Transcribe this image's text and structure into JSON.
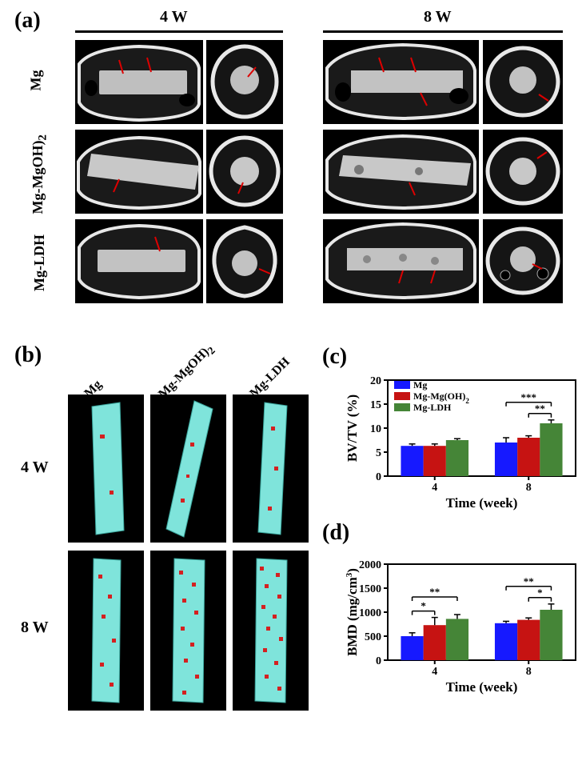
{
  "labels": {
    "a": "(a)",
    "b": "(b)",
    "c": "(c)",
    "d": "(d)",
    "col_4w": "4 W",
    "col_8w": "8 W",
    "row_mg": "Mg",
    "row_mgoh": "Mg-MgOH)",
    "row_mgoh_sub": "2",
    "row_ldh": "Mg-LDH",
    "b_mg": "Mg",
    "b_mgoh": "Mg-MgOH)",
    "b_mgoh_sub": "2",
    "b_ldh": "Mg-LDH",
    "b_4w": "4 W",
    "b_8w": "8 W"
  },
  "colors": {
    "mg": "#1619ff",
    "mgoh": "#c61312",
    "ldh": "#458537",
    "axis": "#000000",
    "bg": "#ffffff",
    "render_body": "#7fe4db",
    "render_spot": "#d42020"
  },
  "chart_c": {
    "type": "bar",
    "ylabel": "BV/TV (%)",
    "xlabel": "Time (week)",
    "ylim": [
      0,
      20
    ],
    "ytick_step": 5,
    "categories": [
      "4",
      "8"
    ],
    "series": [
      "Mg",
      "Mg-Mg(OH)",
      "Mg-LDH"
    ],
    "series_sub": [
      "",
      "2",
      ""
    ],
    "values": [
      [
        6.3,
        6.3,
        7.5
      ],
      [
        7.0,
        8.0,
        11.0
      ]
    ],
    "errors": [
      [
        0.4,
        0.4,
        0.3
      ],
      [
        1.0,
        0.4,
        0.7
      ]
    ],
    "sig": [
      {
        "group": 1,
        "from": 0,
        "to": 2,
        "text": "***",
        "level": 1
      },
      {
        "group": 1,
        "from": 1,
        "to": 2,
        "text": "**",
        "level": 0
      }
    ],
    "label_fontsize": 17,
    "tick_fontsize": 14,
    "bar_width": 0.24
  },
  "chart_d": {
    "type": "bar",
    "ylabel": "BMD (mg/cm³)",
    "ylabel_plain": "BMD (mg/cm",
    "ylabel_sup": "3",
    "ylabel_close": ")",
    "xlabel": "Time (week)",
    "ylim": [
      0,
      2000
    ],
    "ytick_step": 500,
    "categories": [
      "4",
      "8"
    ],
    "series": [
      "Mg",
      "Mg-Mg(OH)",
      "Mg-LDH"
    ],
    "series_sub": [
      "",
      "2",
      ""
    ],
    "values": [
      [
        500,
        730,
        860
      ],
      [
        770,
        840,
        1050
      ]
    ],
    "errors": [
      [
        70,
        160,
        90
      ],
      [
        40,
        40,
        120
      ]
    ],
    "sig": [
      {
        "group": 0,
        "from": 0,
        "to": 1,
        "text": "*",
        "level": 0
      },
      {
        "group": 0,
        "from": 0,
        "to": 2,
        "text": "**",
        "level": 1
      },
      {
        "group": 1,
        "from": 1,
        "to": 2,
        "text": "*",
        "level": 0
      },
      {
        "group": 1,
        "from": 0,
        "to": 2,
        "text": "**",
        "level": 1
      }
    ],
    "label_fontsize": 17,
    "tick_fontsize": 14,
    "bar_width": 0.24
  }
}
